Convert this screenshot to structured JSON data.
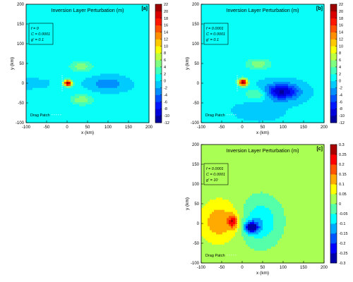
{
  "chart_data": [
    {
      "type": "heatmap",
      "panel_label": "[a]",
      "title": "Inversion Layer Perturbation (m)",
      "xlabel": "x (km)",
      "ylabel": "y (km)",
      "xlim": [
        -100,
        200
      ],
      "ylim": [
        -100,
        200
      ],
      "x_ticks": [
        -100,
        -50,
        0,
        50,
        100,
        150,
        200
      ],
      "y_ticks": [
        -100,
        -50,
        0,
        50,
        100,
        150,
        200
      ],
      "params": [
        "f = 0",
        "C = 0.0001",
        "g' = 0.1"
      ],
      "annotation": "Drag Patch",
      "colorbar": {
        "min": -12,
        "max": 22,
        "ticks": [
          22,
          20,
          18,
          16,
          14,
          12,
          10,
          8,
          6,
          4,
          2,
          0,
          -2,
          -4,
          -6,
          -8,
          -10,
          -12
        ]
      },
      "background_value": 0.3,
      "features": [
        {
          "kind": "front",
          "x_at_y0": -45,
          "value_ahead": 0.3,
          "value_behind": 0.0
        },
        {
          "kind": "blob",
          "x": 2,
          "y": 0,
          "sx": 10,
          "sy": 8,
          "amp": 22
        },
        {
          "kind": "lobes",
          "x": 35,
          "y": 0,
          "offset": 42,
          "sx": 28,
          "sy": 14,
          "amp": 5
        },
        {
          "kind": "blob",
          "x": 100,
          "y": -2,
          "sx": 40,
          "sy": 16,
          "amp": -4
        }
      ]
    },
    {
      "type": "heatmap",
      "panel_label": "[b]",
      "title": "Inversion Layer Perturbation (m)",
      "xlabel": "x (km)",
      "ylabel": "y (km)",
      "xlim": [
        -100,
        200
      ],
      "ylim": [
        -100,
        200
      ],
      "x_ticks": [
        -100,
        -50,
        0,
        50,
        100,
        150,
        200
      ],
      "y_ticks": [
        -100,
        -50,
        0,
        50,
        100,
        150,
        200
      ],
      "params": [
        "f = 0.0001",
        "C = 0.0001",
        "g' = 0.1"
      ],
      "annotation": "Drag Patch",
      "colorbar": {
        "min": -12,
        "max": 22,
        "ticks": [
          22,
          20,
          18,
          16,
          14,
          12,
          10,
          8,
          6,
          4,
          2,
          0,
          -2,
          -4,
          -6,
          -8,
          -10,
          -12
        ]
      },
      "background_value": 0.3,
      "features": [
        {
          "kind": "blob",
          "x": 2,
          "y": 2,
          "sx": 11,
          "sy": 9,
          "amp": 22
        },
        {
          "kind": "lobes",
          "x": 40,
          "y": 10,
          "offset": 38,
          "sx": 32,
          "sy": 14,
          "amp": 5
        },
        {
          "kind": "blob",
          "x": 95,
          "y": -22,
          "sx": 42,
          "sy": 20,
          "amp": -11
        },
        {
          "kind": "blob",
          "x": 40,
          "y": -70,
          "sx": 60,
          "sy": 25,
          "amp": -1
        }
      ]
    },
    {
      "type": "heatmap",
      "panel_label": "[c]",
      "title": "Inversion Layer Perturbation (m)",
      "xlabel": "x (km)",
      "ylabel": "y (km)",
      "xlim": [
        -100,
        200
      ],
      "ylim": [
        -100,
        200
      ],
      "x_ticks": [
        -100,
        -50,
        0,
        50,
        100,
        150,
        200
      ],
      "y_ticks": [
        -100,
        -50,
        0,
        50,
        100,
        150,
        200
      ],
      "params": [
        "f = 0.0001",
        "C = 0.0001",
        "g' = 10"
      ],
      "annotation": "Drag Patch",
      "colorbar": {
        "min": -0.3,
        "max": 0.3,
        "ticks": [
          0.3,
          0.25,
          0.2,
          0.15,
          0.1,
          0.05,
          0,
          -0.05,
          -0.1,
          -0.15,
          -0.2,
          -0.25,
          -0.3
        ]
      },
      "background_value": 0.02,
      "features": [
        {
          "kind": "blob",
          "x": -55,
          "y": 5,
          "sx": 45,
          "sy": 50,
          "amp": 0.12
        },
        {
          "kind": "blob",
          "x": -22,
          "y": 5,
          "sx": 12,
          "sy": 16,
          "amp": 0.18
        },
        {
          "kind": "blob",
          "x": 22,
          "y": -10,
          "sx": 16,
          "sy": 14,
          "amp": -0.3
        },
        {
          "kind": "blob",
          "x": 45,
          "y": 5,
          "sx": 45,
          "sy": 55,
          "amp": -0.12
        }
      ]
    }
  ]
}
